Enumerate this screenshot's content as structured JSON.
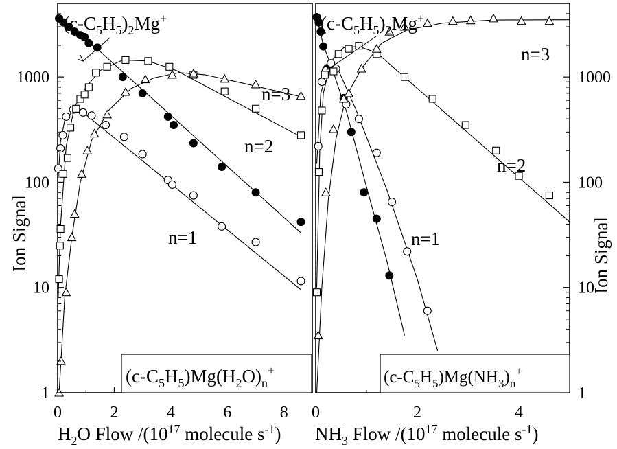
{
  "chart_data": [
    {
      "type": "scatter",
      "y_scale": "log",
      "xlim": [
        0,
        9
      ],
      "ylim": [
        1,
        5000
      ],
      "x_ticks": [
        "0",
        "2",
        "4",
        "6",
        "8"
      ],
      "y_ticks": [
        "1",
        "10",
        "100",
        "1000"
      ],
      "xlabel_parts": [
        "H",
        "2",
        "O Flow /(10",
        "17",
        " molecule s",
        "-1",
        ")"
      ],
      "ylabel": "Ion Signal",
      "legend_box_parts": [
        "(c-C",
        "5",
        "H",
        "5",
        ")Mg(H",
        "2",
        "O)",
        "n",
        "+"
      ],
      "reactant_label_parts": [
        "(c-C",
        "5",
        "H",
        "5",
        ")",
        "2",
        "Mg",
        "+"
      ],
      "n_labels": [
        "n=3",
        "n=2",
        "n=1"
      ],
      "series": [
        {
          "name": "(c-C5H5)2Mg+",
          "marker": "filled-circle",
          "points": [
            [
              0.05,
              3600
            ],
            [
              0.2,
              3300
            ],
            [
              0.4,
              3000
            ],
            [
              0.6,
              2700
            ],
            [
              0.8,
              2500
            ],
            [
              0.95,
              2400
            ],
            [
              1.1,
              2100
            ],
            [
              1.4,
              1900
            ],
            [
              2.3,
              1000
            ],
            [
              3.0,
              700
            ],
            [
              3.9,
              420
            ],
            [
              4.1,
              350
            ],
            [
              4.8,
              235
            ],
            [
              5.8,
              140
            ],
            [
              7.0,
              80
            ],
            [
              8.6,
              42
            ]
          ],
          "fit": [
            [
              0,
              3700
            ],
            [
              1.1,
              2100
            ],
            [
              1.4,
              1850
            ],
            [
              8.6,
              33
            ]
          ]
        },
        {
          "name": "n=1",
          "marker": "open-circle",
          "points": [
            [
              0.02,
              135
            ],
            [
              0.1,
              210
            ],
            [
              0.18,
              280
            ],
            [
              0.3,
              420
            ],
            [
              0.55,
              490
            ],
            [
              0.9,
              460
            ],
            [
              1.2,
              430
            ],
            [
              1.7,
              350
            ],
            [
              2.35,
              270
            ],
            [
              3.0,
              185
            ],
            [
              3.9,
              105
            ],
            [
              4.05,
              95
            ],
            [
              4.8,
              75
            ],
            [
              5.8,
              38
            ],
            [
              7.0,
              27
            ],
            [
              8.6,
              11.5
            ]
          ],
          "fit": [
            [
              0.02,
              110
            ],
            [
              0.1,
              240
            ],
            [
              0.25,
              390
            ],
            [
              0.5,
              460
            ],
            [
              0.9,
              460
            ],
            [
              8.6,
              9.5
            ]
          ]
        },
        {
          "name": "n=2",
          "marker": "open-square",
          "points": [
            [
              0.05,
              12
            ],
            [
              0.08,
              25
            ],
            [
              0.1,
              36
            ],
            [
              0.2,
              120
            ],
            [
              0.35,
              170
            ],
            [
              0.45,
              330
            ],
            [
              0.65,
              500
            ],
            [
              0.8,
              620
            ],
            [
              0.95,
              680
            ],
            [
              1.1,
              800
            ],
            [
              1.35,
              1100
            ],
            [
              1.75,
              1250
            ],
            [
              2.4,
              1450
            ],
            [
              3.2,
              1420
            ],
            [
              3.95,
              1250
            ],
            [
              4.8,
              1050
            ],
            [
              5.9,
              730
            ],
            [
              7.0,
              500
            ],
            [
              8.6,
              280
            ]
          ],
          "fit": [
            [
              0.02,
              8
            ],
            [
              0.1,
              38
            ],
            [
              0.3,
              220
            ],
            [
              0.6,
              520
            ],
            [
              1.0,
              800
            ],
            [
              1.5,
              1150
            ],
            [
              2.3,
              1450
            ],
            [
              3.2,
              1420
            ],
            [
              4.2,
              1150
            ],
            [
              8.6,
              270
            ]
          ]
        },
        {
          "name": "n=3",
          "marker": "open-triangle",
          "points": [
            [
              0.05,
              1
            ],
            [
              0.12,
              2
            ],
            [
              0.3,
              9
            ],
            [
              0.5,
              30
            ],
            [
              0.6,
              50
            ],
            [
              0.85,
              120
            ],
            [
              1.05,
              200
            ],
            [
              1.3,
              290
            ],
            [
              1.75,
              440
            ],
            [
              2.4,
              720
            ],
            [
              3.1,
              950
            ],
            [
              4.05,
              1050
            ],
            [
              4.8,
              1080
            ],
            [
              5.9,
              960
            ],
            [
              7.0,
              850
            ],
            [
              8.6,
              660
            ]
          ],
          "fit": [
            [
              0.05,
              1
            ],
            [
              0.25,
              8
            ],
            [
              0.5,
              30
            ],
            [
              0.8,
              100
            ],
            [
              1.2,
              250
            ],
            [
              1.8,
              480
            ],
            [
              2.6,
              780
            ],
            [
              3.4,
              980
            ],
            [
              4.3,
              1100
            ],
            [
              5.2,
              1050
            ],
            [
              6.5,
              880
            ],
            [
              8.6,
              650
            ]
          ]
        }
      ]
    },
    {
      "type": "scatter",
      "y_scale": "log",
      "xlim": [
        0,
        5
      ],
      "ylim": [
        1,
        5000
      ],
      "x_ticks": [
        "0",
        "2",
        "4"
      ],
      "y_ticks": [
        "1",
        "10",
        "100",
        "1000"
      ],
      "xlabel_parts": [
        "NH",
        "3",
        " Flow /(10",
        "17",
        " molecule s",
        "-1",
        ")"
      ],
      "ylabel": "Ion Signal",
      "legend_box_parts": [
        "(c-C",
        "5",
        "H",
        "5",
        ")Mg(NH",
        "3",
        ")",
        "n",
        "+"
      ],
      "reactant_label_parts": [
        "(c-C",
        "5",
        "H",
        "5",
        ")",
        "2",
        "Mg",
        "+"
      ],
      "n_labels": [
        "n=3",
        "n=2",
        "n=1"
      ],
      "series": [
        {
          "name": "(c-C5H5)2Mg+",
          "marker": "filled-circle",
          "points": [
            [
              0.02,
              3700
            ],
            [
              0.06,
              3300
            ],
            [
              0.1,
              2700
            ],
            [
              0.15,
              1950
            ],
            [
              0.22,
              1200
            ],
            [
              0.55,
              630
            ],
            [
              0.7,
              300
            ],
            [
              0.95,
              80
            ],
            [
              1.2,
              45
            ],
            [
              1.45,
              13
            ]
          ],
          "fit": [
            [
              0.02,
              3700
            ],
            [
              0.15,
              2000
            ],
            [
              0.3,
              1300
            ],
            [
              0.6,
              480
            ],
            [
              1.0,
              90
            ],
            [
              1.4,
              18
            ],
            [
              1.75,
              3.5
            ]
          ]
        },
        {
          "name": "n=1",
          "marker": "open-circle",
          "points": [
            [
              0.05,
              220
            ],
            [
              0.12,
              900
            ],
            [
              0.2,
              1150
            ],
            [
              0.3,
              1350
            ],
            [
              0.4,
              1200
            ],
            [
              0.6,
              550
            ],
            [
              0.85,
              400
            ],
            [
              1.2,
              190
            ],
            [
              1.5,
              65
            ],
            [
              1.8,
              22
            ],
            [
              2.2,
              6
            ]
          ],
          "fit": [
            [
              0.02,
              150
            ],
            [
              0.1,
              700
            ],
            [
              0.25,
              1250
            ],
            [
              0.45,
              1150
            ],
            [
              0.8,
              480
            ],
            [
              1.4,
              85
            ],
            [
              2.0,
              12
            ],
            [
              2.4,
              2.5
            ]
          ]
        },
        {
          "name": "n=2",
          "marker": "open-square",
          "points": [
            [
              0.02,
              9
            ],
            [
              0.06,
              125
            ],
            [
              0.12,
              480
            ],
            [
              0.18,
              1050
            ],
            [
              0.35,
              1130
            ],
            [
              0.45,
              1650
            ],
            [
              0.65,
              1850
            ],
            [
              0.85,
              1980
            ],
            [
              1.2,
              1650
            ],
            [
              1.75,
              1000
            ],
            [
              2.3,
              620
            ],
            [
              2.95,
              350
            ],
            [
              3.55,
              200
            ],
            [
              4.0,
              115
            ],
            [
              4.6,
              75
            ]
          ],
          "fit": [
            [
              0.02,
              10
            ],
            [
              0.08,
              200
            ],
            [
              0.15,
              700
            ],
            [
              0.3,
              1400
            ],
            [
              0.55,
              1900
            ],
            [
              0.85,
              1950
            ],
            [
              1.2,
              1700
            ],
            [
              5.0,
              42
            ]
          ]
        },
        {
          "name": "n=3",
          "marker": "open-triangle",
          "points": [
            [
              0.05,
              3.5
            ],
            [
              0.2,
              80
            ],
            [
              0.35,
              320
            ],
            [
              0.55,
              620
            ],
            [
              0.65,
              700
            ],
            [
              0.9,
              1200
            ],
            [
              1.2,
              1850
            ],
            [
              1.45,
              2700
            ],
            [
              1.75,
              3000
            ],
            [
              2.2,
              3250
            ],
            [
              2.7,
              3400
            ],
            [
              3.05,
              3450
            ],
            [
              3.5,
              3600
            ],
            [
              4.05,
              3400
            ],
            [
              4.6,
              3400
            ]
          ],
          "fit": [
            [
              0.02,
              1
            ],
            [
              0.12,
              10
            ],
            [
              0.25,
              70
            ],
            [
              0.4,
              260
            ],
            [
              0.6,
              650
            ],
            [
              0.9,
              1200
            ],
            [
              1.3,
              2100
            ],
            [
              1.8,
              2800
            ],
            [
              2.5,
              3250
            ],
            [
              3.5,
              3480
            ],
            [
              5.0,
              3500
            ]
          ]
        }
      ]
    }
  ]
}
